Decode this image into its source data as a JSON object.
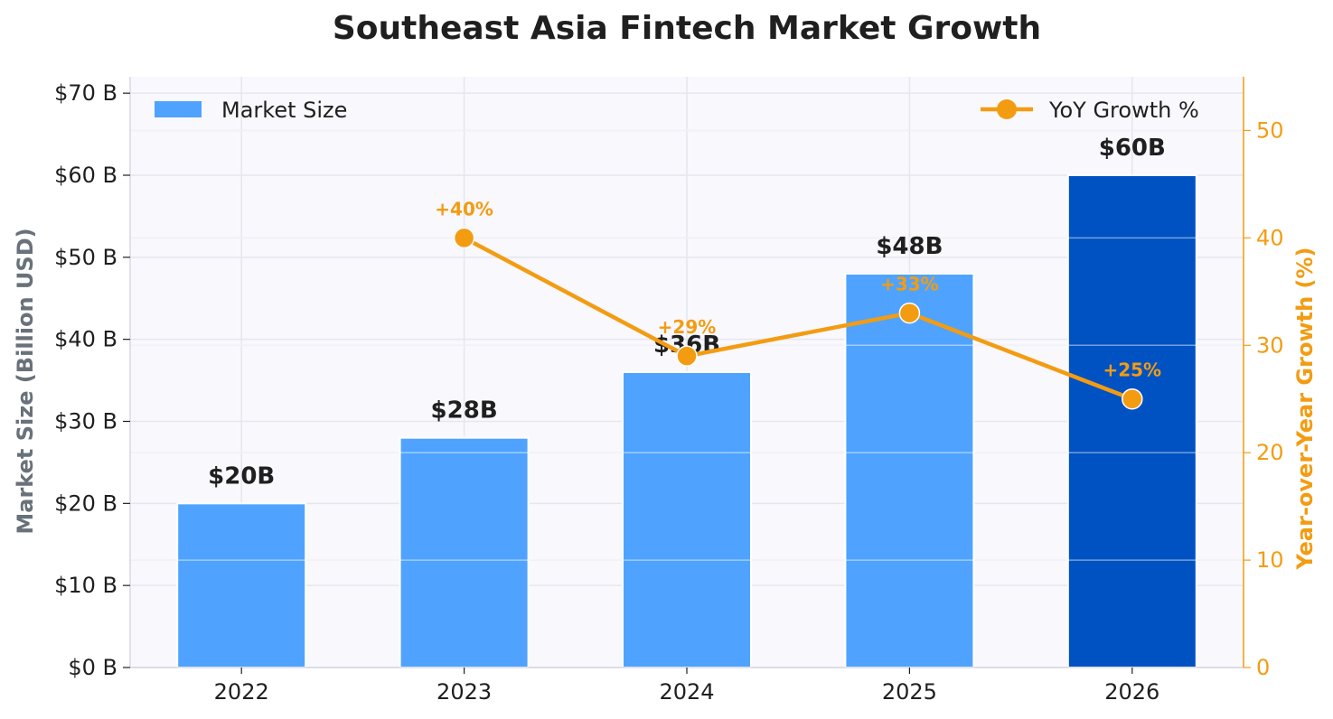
{
  "chart_data": {
    "type": "bar",
    "title": "Southeast Asia Fintech Market Growth",
    "categories": [
      "2022",
      "2023",
      "2024",
      "2025",
      "2026"
    ],
    "series": [
      {
        "name": "Market Size",
        "kind": "bar",
        "axis": "left",
        "values": [
          20,
          28,
          36,
          48,
          60
        ],
        "labels": [
          "$20B",
          "$28B",
          "$36B",
          "$48B",
          "$60B"
        ],
        "color": "#4fa3ff",
        "highlight_color": "#0052c2",
        "highlight_index": 4
      },
      {
        "name": "YoY Growth %",
        "kind": "line",
        "axis": "right",
        "x": [
          "2023",
          "2024",
          "2025",
          "2026"
        ],
        "values": [
          40,
          29,
          33,
          25
        ],
        "labels": [
          "+40%",
          "+29%",
          "+33%",
          "+25%"
        ],
        "color": "#f39c12"
      }
    ],
    "ylabel": "Market Size (Billion USD)",
    "ylabel_right": "Year-over-Year Growth (%)",
    "ylim": [
      0,
      72
    ],
    "ylim_right": [
      0,
      55
    ],
    "yticks": [
      0,
      10,
      20,
      30,
      40,
      50,
      60,
      70
    ],
    "ytick_labels": [
      "$0 B",
      "$10 B",
      "$20 B",
      "$30 B",
      "$40 B",
      "$50 B",
      "$60 B",
      "$70 B"
    ],
    "yticks_right": [
      0,
      10,
      20,
      30,
      40,
      50
    ],
    "ytick_labels_right": [
      "0",
      "10",
      "20",
      "30",
      "40",
      "50"
    ],
    "grid": true,
    "legend_left": "top-left",
    "legend_right": "top-right",
    "colors": {
      "plot_bg": "#f8f8fd",
      "grid": "#e6e6ee",
      "left_axis": "#69717a",
      "right_axis": "#f39c12"
    }
  }
}
